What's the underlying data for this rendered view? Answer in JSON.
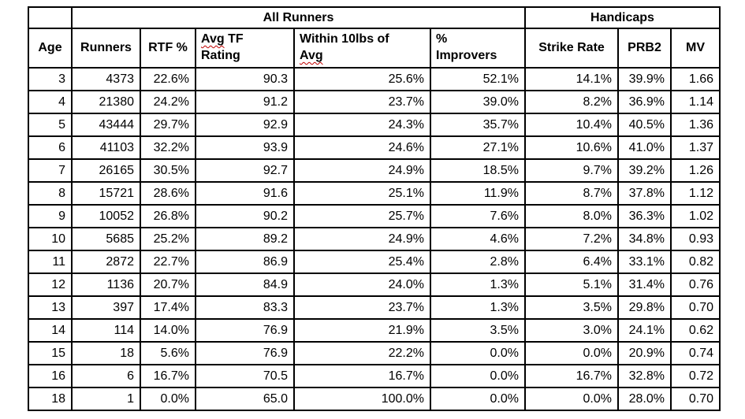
{
  "table": {
    "colors": {
      "border": "#000000",
      "text": "#000000",
      "spellcheck_squiggle": "#c00000",
      "background": "#ffffff"
    },
    "group_headers": {
      "corner": "",
      "all_runners": "All Runners",
      "handicaps": "Handicaps"
    },
    "column_headers": {
      "age": "Age",
      "runners": "Runners",
      "rtf": "RTF %",
      "avg_tf": {
        "squiggle_word": "Avg",
        "line1_rest": " TF",
        "line2": "Rating"
      },
      "within": {
        "line1": "Within 10lbs of",
        "line2_squiggle_word": "Avg"
      },
      "improvers": {
        "line1": "%",
        "line2": "Improvers"
      },
      "strike_rate": "Strike Rate",
      "prb2": "PRB2",
      "mv": "MV"
    },
    "rows": [
      [
        "3",
        "4373",
        "22.6%",
        "90.3",
        "25.6%",
        "52.1%",
        "14.1%",
        "39.9%",
        "1.66"
      ],
      [
        "4",
        "21380",
        "24.2%",
        "91.2",
        "23.7%",
        "39.0%",
        "8.2%",
        "36.9%",
        "1.14"
      ],
      [
        "5",
        "43444",
        "29.7%",
        "92.9",
        "24.3%",
        "35.7%",
        "10.4%",
        "40.5%",
        "1.36"
      ],
      [
        "6",
        "41103",
        "32.2%",
        "93.9",
        "24.6%",
        "27.1%",
        "10.6%",
        "41.0%",
        "1.37"
      ],
      [
        "7",
        "26165",
        "30.5%",
        "92.7",
        "24.9%",
        "18.5%",
        "9.7%",
        "39.2%",
        "1.26"
      ],
      [
        "8",
        "15721",
        "28.6%",
        "91.6",
        "25.1%",
        "11.9%",
        "8.7%",
        "37.8%",
        "1.12"
      ],
      [
        "9",
        "10052",
        "26.8%",
        "90.2",
        "25.7%",
        "7.6%",
        "8.0%",
        "36.3%",
        "1.02"
      ],
      [
        "10",
        "5685",
        "25.2%",
        "89.2",
        "24.9%",
        "4.6%",
        "7.2%",
        "34.8%",
        "0.93"
      ],
      [
        "11",
        "2872",
        "22.7%",
        "86.9",
        "25.4%",
        "2.8%",
        "6.4%",
        "33.1%",
        "0.82"
      ],
      [
        "12",
        "1136",
        "20.7%",
        "84.9",
        "24.0%",
        "1.3%",
        "5.1%",
        "31.4%",
        "0.76"
      ],
      [
        "13",
        "397",
        "17.4%",
        "83.3",
        "23.7%",
        "1.3%",
        "3.5%",
        "29.8%",
        "0.70"
      ],
      [
        "14",
        "114",
        "14.0%",
        "76.9",
        "21.9%",
        "3.5%",
        "3.0%",
        "24.1%",
        "0.62"
      ],
      [
        "15",
        "18",
        "5.6%",
        "76.9",
        "22.2%",
        "0.0%",
        "0.0%",
        "20.9%",
        "0.74"
      ],
      [
        "16",
        "6",
        "16.7%",
        "70.5",
        "16.7%",
        "0.0%",
        "16.7%",
        "32.8%",
        "0.72"
      ],
      [
        "18",
        "1",
        "0.0%",
        "65.0",
        "100.0%",
        "0.0%",
        "0.0%",
        "28.0%",
        "0.70"
      ]
    ]
  }
}
